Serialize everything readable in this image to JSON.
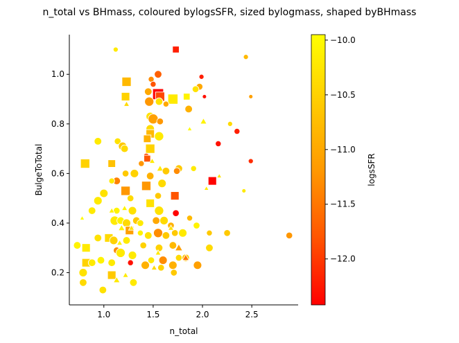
{
  "chart_data": {
    "type": "scatter",
    "title": "n_total vs BHmass, coloured bylogsSFR, sized bylogmass, shaped byBHmass",
    "xlabel": "n_total",
    "ylabel": "BulgeToTotal",
    "xlim": [
      0.65,
      2.97
    ],
    "ylim": [
      0.07,
      1.16
    ],
    "xticks": [
      1.0,
      1.5,
      2.0,
      2.5
    ],
    "xtick_labels": [
      "1.0",
      "1.5",
      "2.0",
      "2.5"
    ],
    "yticks": [
      0.2,
      0.4,
      0.6,
      0.8,
      1.0
    ],
    "ytick_labels": [
      "0.2",
      "0.4",
      "0.6",
      "0.8",
      "1.0"
    ],
    "grid": false,
    "colorbar": {
      "label": "logsSFR",
      "range": [
        -12.42,
        -9.95
      ],
      "ticks": [
        -10.0,
        -10.5,
        -11.0,
        -11.5,
        -12.0
      ],
      "tick_labels": [
        "−10.0",
        "−10.5",
        "−11.0",
        "−11.5",
        "−12.0"
      ],
      "colormap": [
        "#ffff00",
        "#ffcc00",
        "#ff9900",
        "#ff5500",
        "#ff0000"
      ]
    },
    "legend": "none",
    "points": [
      {
        "x": 1.12,
        "y": 1.1,
        "c": -10.2,
        "m": "o",
        "s": 3
      },
      {
        "x": 1.73,
        "y": 1.1,
        "c": -12.2,
        "m": "s",
        "s": 5
      },
      {
        "x": 2.44,
        "y": 1.07,
        "c": -10.8,
        "m": "o",
        "s": 3
      },
      {
        "x": 1.55,
        "y": 1.0,
        "c": -11.7,
        "m": "o",
        "s": 6
      },
      {
        "x": 1.99,
        "y": 0.99,
        "c": -12.2,
        "m": "o",
        "s": 3
      },
      {
        "x": 1.48,
        "y": 0.98,
        "c": -11.3,
        "m": "o",
        "s": 4
      },
      {
        "x": 1.5,
        "y": 0.96,
        "c": -11.8,
        "m": "o",
        "s": 4
      },
      {
        "x": 1.23,
        "y": 0.97,
        "c": -10.8,
        "m": "s",
        "s": 8
      },
      {
        "x": 1.97,
        "y": 0.95,
        "c": -11.0,
        "m": "o",
        "s": 5
      },
      {
        "x": 1.93,
        "y": 0.94,
        "c": -10.3,
        "m": "o",
        "s": 5
      },
      {
        "x": 1.45,
        "y": 0.93,
        "c": -11.0,
        "m": "o",
        "s": 6
      },
      {
        "x": 1.55,
        "y": 0.92,
        "c": -12.4,
        "m": "s",
        "s": 10
      },
      {
        "x": 1.57,
        "y": 0.91,
        "c": -11.9,
        "m": "s",
        "s": 8
      },
      {
        "x": 1.22,
        "y": 0.91,
        "c": -10.5,
        "m": "s",
        "s": 7
      },
      {
        "x": 2.02,
        "y": 0.91,
        "c": -12.3,
        "m": "o",
        "s": 2
      },
      {
        "x": 2.49,
        "y": 0.91,
        "c": -11.1,
        "m": "o",
        "s": 2
      },
      {
        "x": 1.84,
        "y": 0.91,
        "c": -10.1,
        "m": "s",
        "s": 5
      },
      {
        "x": 1.7,
        "y": 0.9,
        "c": -10.2,
        "m": "s",
        "s": 9
      },
      {
        "x": 1.46,
        "y": 0.89,
        "c": -11.2,
        "m": "o",
        "s": 8
      },
      {
        "x": 1.56,
        "y": 0.89,
        "c": -10.3,
        "m": "o",
        "s": 6
      },
      {
        "x": 1.23,
        "y": 0.88,
        "c": -10.4,
        "m": "^",
        "s": 3
      },
      {
        "x": 1.63,
        "y": 0.88,
        "c": -11.0,
        "m": "o",
        "s": 4
      },
      {
        "x": 1.86,
        "y": 0.86,
        "c": -10.9,
        "m": "o",
        "s": 6
      },
      {
        "x": 1.47,
        "y": 0.83,
        "c": -10.3,
        "m": "o",
        "s": 7
      },
      {
        "x": 1.5,
        "y": 0.82,
        "c": -11.1,
        "m": "o",
        "s": 9
      },
      {
        "x": 1.57,
        "y": 0.81,
        "c": -11.2,
        "m": "o",
        "s": 5
      },
      {
        "x": 2.01,
        "y": 0.81,
        "c": -10.1,
        "m": "^",
        "s": 4
      },
      {
        "x": 2.28,
        "y": 0.8,
        "c": -10.4,
        "m": "o",
        "s": 3
      },
      {
        "x": 1.47,
        "y": 0.78,
        "c": -10.4,
        "m": "o",
        "s": 7
      },
      {
        "x": 1.87,
        "y": 0.78,
        "c": -10.0,
        "m": "^",
        "s": 2
      },
      {
        "x": 2.35,
        "y": 0.77,
        "c": -12.2,
        "m": "o",
        "s": 4
      },
      {
        "x": 1.47,
        "y": 0.76,
        "c": -10.8,
        "m": "s",
        "s": 7
      },
      {
        "x": 1.56,
        "y": 0.75,
        "c": -10.2,
        "m": "o",
        "s": 8
      },
      {
        "x": 1.44,
        "y": 0.74,
        "c": -10.9,
        "m": "s",
        "s": 6
      },
      {
        "x": 0.94,
        "y": 0.73,
        "c": -10.2,
        "m": "o",
        "s": 6
      },
      {
        "x": 1.14,
        "y": 0.73,
        "c": -10.3,
        "m": "o",
        "s": 5
      },
      {
        "x": 2.16,
        "y": 0.72,
        "c": -12.3,
        "m": "o",
        "s": 4
      },
      {
        "x": 1.19,
        "y": 0.71,
        "c": -10.6,
        "m": "o",
        "s": 7
      },
      {
        "x": 1.21,
        "y": 0.7,
        "c": -10.4,
        "m": "o",
        "s": 6
      },
      {
        "x": 1.47,
        "y": 0.7,
        "c": -10.5,
        "m": "s",
        "s": 8
      },
      {
        "x": 1.43,
        "y": 0.67,
        "c": -11.9,
        "m": "o",
        "s": 4
      },
      {
        "x": 1.44,
        "y": 0.66,
        "c": -11.8,
        "m": "s",
        "s": 5
      },
      {
        "x": 1.49,
        "y": 0.65,
        "c": -10.2,
        "m": "^",
        "s": 3
      },
      {
        "x": 1.38,
        "y": 0.64,
        "c": -11.2,
        "m": "o",
        "s": 4
      },
      {
        "x": 1.08,
        "y": 0.64,
        "c": -10.7,
        "m": "s",
        "s": 6
      },
      {
        "x": 0.81,
        "y": 0.64,
        "c": -10.5,
        "m": "s",
        "s": 8
      },
      {
        "x": 2.49,
        "y": 0.65,
        "c": -12.1,
        "m": "o",
        "s": 3
      },
      {
        "x": 1.76,
        "y": 0.62,
        "c": -10.6,
        "m": "o",
        "s": 6
      },
      {
        "x": 1.57,
        "y": 0.62,
        "c": -10.2,
        "m": "^",
        "s": 4
      },
      {
        "x": 1.63,
        "y": 0.61,
        "c": -10.6,
        "m": "o",
        "s": 6
      },
      {
        "x": 1.74,
        "y": 0.61,
        "c": -11.3,
        "m": "o",
        "s": 5
      },
      {
        "x": 1.91,
        "y": 0.62,
        "c": -10.2,
        "m": "o",
        "s": 4
      },
      {
        "x": 1.22,
        "y": 0.6,
        "c": -10.6,
        "m": "o",
        "s": 5
      },
      {
        "x": 1.31,
        "y": 0.6,
        "c": -10.5,
        "m": "o",
        "s": 7
      },
      {
        "x": 1.47,
        "y": 0.59,
        "c": -10.9,
        "m": "o",
        "s": 6
      },
      {
        "x": 2.17,
        "y": 0.59,
        "c": -10.3,
        "m": "^",
        "s": 2
      },
      {
        "x": 1.13,
        "y": 0.57,
        "c": -11.4,
        "m": "o",
        "s": 6
      },
      {
        "x": 1.08,
        "y": 0.57,
        "c": -10.2,
        "m": "o",
        "s": 4
      },
      {
        "x": 1.59,
        "y": 0.56,
        "c": -10.4,
        "m": "o",
        "s": 7
      },
      {
        "x": 2.1,
        "y": 0.57,
        "c": -12.4,
        "m": "s",
        "s": 7
      },
      {
        "x": 1.22,
        "y": 0.53,
        "c": -11.2,
        "m": "s",
        "s": 8
      },
      {
        "x": 1.0,
        "y": 0.52,
        "c": -10.3,
        "m": "o",
        "s": 7
      },
      {
        "x": 1.43,
        "y": 0.55,
        "c": -11.2,
        "m": "s",
        "s": 8
      },
      {
        "x": 2.04,
        "y": 0.54,
        "c": -10.2,
        "m": "^",
        "s": 2
      },
      {
        "x": 2.42,
        "y": 0.53,
        "c": -10.2,
        "m": "o",
        "s": 2
      },
      {
        "x": 1.72,
        "y": 0.51,
        "c": -11.8,
        "m": "s",
        "s": 7
      },
      {
        "x": 1.55,
        "y": 0.51,
        "c": -10.6,
        "m": "o",
        "s": 5
      },
      {
        "x": 1.27,
        "y": 0.5,
        "c": -10.4,
        "m": "o",
        "s": 5
      },
      {
        "x": 0.94,
        "y": 0.49,
        "c": -10.2,
        "m": "o",
        "s": 7
      },
      {
        "x": 1.47,
        "y": 0.48,
        "c": -10.3,
        "m": "s",
        "s": 7
      },
      {
        "x": 1.21,
        "y": 0.46,
        "c": -10.1,
        "m": "^",
        "s": 3
      },
      {
        "x": 1.13,
        "y": 0.45,
        "c": -10.1,
        "m": "o",
        "s": 5
      },
      {
        "x": 1.29,
        "y": 0.45,
        "c": -10.3,
        "m": "o",
        "s": 7
      },
      {
        "x": 1.56,
        "y": 0.45,
        "c": -10.3,
        "m": "o",
        "s": 8
      },
      {
        "x": 1.73,
        "y": 0.44,
        "c": -12.4,
        "m": "o",
        "s": 5
      },
      {
        "x": 1.08,
        "y": 0.45,
        "c": -10.1,
        "m": "^",
        "s": 3
      },
      {
        "x": 0.88,
        "y": 0.45,
        "c": -10.2,
        "m": "o",
        "s": 6
      },
      {
        "x": 1.87,
        "y": 0.42,
        "c": -10.8,
        "m": "o",
        "s": 4
      },
      {
        "x": 0.78,
        "y": 0.42,
        "c": -10.0,
        "m": "^",
        "s": 2
      },
      {
        "x": 1.11,
        "y": 0.41,
        "c": -10.2,
        "m": "o",
        "s": 8
      },
      {
        "x": 1.17,
        "y": 0.41,
        "c": -10.1,
        "m": "o",
        "s": 6
      },
      {
        "x": 1.23,
        "y": 0.4,
        "c": -10.4,
        "m": "o",
        "s": 7
      },
      {
        "x": 1.33,
        "y": 0.41,
        "c": -10.6,
        "m": "o",
        "s": 6
      },
      {
        "x": 1.37,
        "y": 0.4,
        "c": -10.2,
        "m": "o",
        "s": 5
      },
      {
        "x": 1.53,
        "y": 0.41,
        "c": -11.0,
        "m": "o",
        "s": 6
      },
      {
        "x": 1.61,
        "y": 0.41,
        "c": -10.4,
        "m": "o",
        "s": 7
      },
      {
        "x": 1.68,
        "y": 0.39,
        "c": -10.9,
        "m": "o",
        "s": 5
      },
      {
        "x": 1.94,
        "y": 0.39,
        "c": -10.1,
        "m": "o",
        "s": 5
      },
      {
        "x": 1.72,
        "y": 0.36,
        "c": -10.6,
        "m": "o",
        "s": 5
      },
      {
        "x": 1.68,
        "y": 0.38,
        "c": -10.3,
        "m": "^",
        "s": 3
      },
      {
        "x": 1.18,
        "y": 0.38,
        "c": -10.1,
        "m": "^",
        "s": 4
      },
      {
        "x": 1.26,
        "y": 0.37,
        "c": -11.1,
        "m": "s",
        "s": 7
      },
      {
        "x": 1.28,
        "y": 0.38,
        "c": -10.3,
        "m": "^",
        "s": 3
      },
      {
        "x": 1.37,
        "y": 0.36,
        "c": -10.1,
        "m": "o",
        "s": 4
      },
      {
        "x": 1.45,
        "y": 0.35,
        "c": -10.3,
        "m": "o",
        "s": 6
      },
      {
        "x": 1.55,
        "y": 0.36,
        "c": -11.3,
        "m": "o",
        "s": 8
      },
      {
        "x": 1.63,
        "y": 0.35,
        "c": -10.6,
        "m": "o",
        "s": 6
      },
      {
        "x": 1.8,
        "y": 0.36,
        "c": -10.2,
        "m": "o",
        "s": 7
      },
      {
        "x": 2.07,
        "y": 0.36,
        "c": -10.6,
        "m": "o",
        "s": 4
      },
      {
        "x": 2.25,
        "y": 0.36,
        "c": -10.6,
        "m": "o",
        "s": 5
      },
      {
        "x": 2.88,
        "y": 0.35,
        "c": -11.2,
        "m": "o",
        "s": 5
      },
      {
        "x": 1.05,
        "y": 0.34,
        "c": -10.4,
        "m": "s",
        "s": 7
      },
      {
        "x": 0.94,
        "y": 0.34,
        "c": -10.3,
        "m": "o",
        "s": 6
      },
      {
        "x": 1.1,
        "y": 0.33,
        "c": -10.5,
        "m": "o",
        "s": 7
      },
      {
        "x": 1.16,
        "y": 0.32,
        "c": -10.1,
        "m": "^",
        "s": 3
      },
      {
        "x": 1.23,
        "y": 0.33,
        "c": -10.2,
        "m": "o",
        "s": 6
      },
      {
        "x": 1.4,
        "y": 0.31,
        "c": -10.5,
        "m": "o",
        "s": 5
      },
      {
        "x": 1.56,
        "y": 0.3,
        "c": -10.5,
        "m": "o",
        "s": 6
      },
      {
        "x": 1.7,
        "y": 0.31,
        "c": -10.8,
        "m": "o",
        "s": 6
      },
      {
        "x": 2.07,
        "y": 0.3,
        "c": -10.4,
        "m": "o",
        "s": 6
      },
      {
        "x": 0.82,
        "y": 0.3,
        "c": -10.2,
        "m": "s",
        "s": 7
      },
      {
        "x": 1.13,
        "y": 0.29,
        "c": -11.3,
        "m": "o",
        "s": 5
      },
      {
        "x": 1.17,
        "y": 0.28,
        "c": -10.2,
        "m": "o",
        "s": 8
      },
      {
        "x": 1.29,
        "y": 0.27,
        "c": -10.2,
        "m": "o",
        "s": 7
      },
      {
        "x": 1.55,
        "y": 0.28,
        "c": -10.2,
        "m": "^",
        "s": 3
      },
      {
        "x": 1.76,
        "y": 0.3,
        "c": -11.1,
        "m": "^",
        "s": 5
      },
      {
        "x": 0.97,
        "y": 0.25,
        "c": -10.1,
        "m": "o",
        "s": 6
      },
      {
        "x": 1.27,
        "y": 0.24,
        "c": -12.3,
        "m": "o",
        "s": 4
      },
      {
        "x": 1.48,
        "y": 0.25,
        "c": -10.2,
        "m": "o",
        "s": 5
      },
      {
        "x": 1.6,
        "y": 0.25,
        "c": -11.3,
        "m": "o",
        "s": 7
      },
      {
        "x": 1.76,
        "y": 0.26,
        "c": -10.4,
        "m": "o",
        "s": 5
      },
      {
        "x": 1.83,
        "y": 0.26,
        "c": -10.6,
        "m": "o",
        "s": 6
      },
      {
        "x": 1.83,
        "y": 0.26,
        "c": -11.5,
        "m": "^",
        "s": 4
      },
      {
        "x": 0.82,
        "y": 0.24,
        "c": -10.5,
        "m": "s",
        "s": 7
      },
      {
        "x": 0.88,
        "y": 0.24,
        "c": -10.2,
        "m": "o",
        "s": 6
      },
      {
        "x": 1.08,
        "y": 0.24,
        "c": -10.2,
        "m": "o",
        "s": 6
      },
      {
        "x": 1.42,
        "y": 0.23,
        "c": -10.9,
        "m": "o",
        "s": 7
      },
      {
        "x": 1.51,
        "y": 0.22,
        "c": -10.4,
        "m": "^",
        "s": 3
      },
      {
        "x": 1.58,
        "y": 0.22,
        "c": -10.5,
        "m": "o",
        "s": 5
      },
      {
        "x": 1.7,
        "y": 0.23,
        "c": -10.9,
        "m": "o",
        "s": 7
      },
      {
        "x": 1.95,
        "y": 0.23,
        "c": -11.1,
        "m": "o",
        "s": 7
      },
      {
        "x": 0.79,
        "y": 0.2,
        "c": -10.3,
        "m": "o",
        "s": 7
      },
      {
        "x": 1.08,
        "y": 0.19,
        "c": -10.6,
        "m": "s",
        "s": 7
      },
      {
        "x": 1.22,
        "y": 0.19,
        "c": -10.2,
        "m": "^",
        "s": 3
      },
      {
        "x": 1.71,
        "y": 0.2,
        "c": -10.6,
        "m": "o",
        "s": 5
      },
      {
        "x": 0.79,
        "y": 0.16,
        "c": -10.4,
        "m": "o",
        "s": 6
      },
      {
        "x": 1.13,
        "y": 0.17,
        "c": -10.2,
        "m": "^",
        "s": 4
      },
      {
        "x": 1.3,
        "y": 0.16,
        "c": -10.2,
        "m": "o",
        "s": 6
      },
      {
        "x": 0.99,
        "y": 0.13,
        "c": -10.3,
        "m": "o",
        "s": 6
      },
      {
        "x": 0.73,
        "y": 0.31,
        "c": -10.1,
        "m": "o",
        "s": 6
      }
    ]
  }
}
